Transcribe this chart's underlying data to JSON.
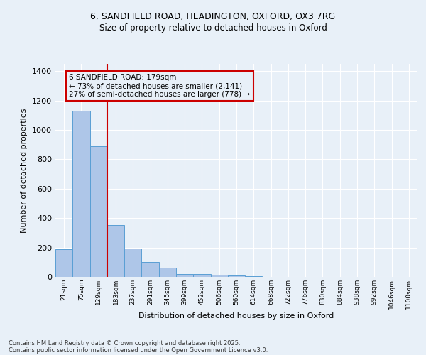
{
  "title1": "6, SANDFIELD ROAD, HEADINGTON, OXFORD, OX3 7RG",
  "title2": "Size of property relative to detached houses in Oxford",
  "xlabel": "Distribution of detached houses by size in Oxford",
  "ylabel": "Number of detached properties",
  "categories": [
    "21sqm",
    "75sqm",
    "129sqm",
    "183sqm",
    "237sqm",
    "291sqm",
    "345sqm",
    "399sqm",
    "452sqm",
    "506sqm",
    "560sqm",
    "614sqm",
    "668sqm",
    "722sqm",
    "776sqm",
    "830sqm",
    "884sqm",
    "938sqm",
    "992sqm",
    "1046sqm",
    "1100sqm"
  ],
  "values": [
    190,
    1130,
    890,
    355,
    195,
    100,
    65,
    20,
    20,
    15,
    10,
    5,
    2,
    1,
    1,
    0,
    0,
    0,
    0,
    0,
    0
  ],
  "bar_color": "#aec6e8",
  "bar_edge_color": "#5a9fd4",
  "vline_x_idx": 2.5,
  "vline_color": "#cc0000",
  "annotation_line1": "6 SANDFIELD ROAD: 179sqm",
  "annotation_line2": "← 73% of detached houses are smaller (2,141)",
  "annotation_line3": "27% of semi-detached houses are larger (778) →",
  "annotation_box_color": "#cc0000",
  "ylim": [
    0,
    1450
  ],
  "yticks": [
    0,
    200,
    400,
    600,
    800,
    1000,
    1200,
    1400
  ],
  "background_color": "#e8f0f8",
  "grid_color": "#ffffff",
  "footer1": "Contains HM Land Registry data © Crown copyright and database right 2025.",
  "footer2": "Contains public sector information licensed under the Open Government Licence v3.0."
}
